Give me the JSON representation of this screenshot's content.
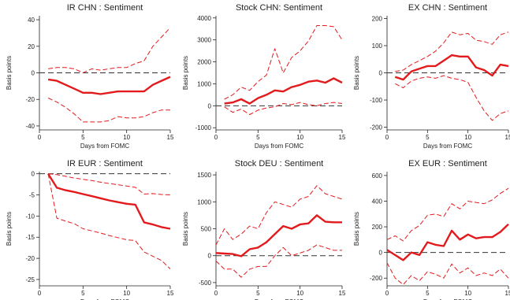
{
  "chart_data": [
    {
      "type": "line",
      "title": "IR CHN : Sentiment",
      "xlabel": "Days from FOMC",
      "ylabel": "Basis points",
      "xlim": [
        0,
        15
      ],
      "ylim": [
        -43,
        43
      ],
      "xticks": [
        0,
        5,
        10,
        15
      ],
      "yticks": [
        -40,
        -20,
        0,
        20,
        40
      ],
      "zero_line": true,
      "grid": false,
      "series": [
        {
          "role": "estimate",
          "color": "#e31a1c",
          "style": "solid",
          "x": [
            1,
            2,
            3,
            4,
            5,
            6,
            7,
            8,
            9,
            10,
            11,
            12,
            13,
            14,
            15
          ],
          "values": [
            -5,
            -6,
            -9,
            -12,
            -15,
            -15,
            -16,
            -15,
            -14,
            -14,
            -14,
            -14,
            -9,
            -6,
            -3
          ]
        },
        {
          "role": "upper",
          "color": "#e31a1c",
          "style": "dashed",
          "x": [
            1,
            2,
            3,
            4,
            5,
            6,
            7,
            8,
            9,
            10,
            11,
            12,
            13,
            14,
            15
          ],
          "values": [
            3,
            4,
            4,
            3,
            0,
            3,
            2,
            3,
            4,
            4,
            7,
            9,
            20,
            27,
            34
          ]
        },
        {
          "role": "lower",
          "color": "#e31a1c",
          "style": "dashed",
          "x": [
            1,
            2,
            3,
            4,
            5,
            6,
            7,
            8,
            9,
            10,
            11,
            12,
            13,
            14,
            15
          ],
          "values": [
            -19,
            -22,
            -26,
            -31,
            -37,
            -37,
            -37,
            -36,
            -33,
            -34,
            -34,
            -33,
            -30,
            -28,
            -28
          ]
        }
      ]
    },
    {
      "type": "line",
      "title": "Stock CHN: Sentiment",
      "xlabel": "Days from FOMC",
      "ylabel": "Basis points",
      "xlim": [
        0,
        15
      ],
      "ylim": [
        -1100,
        4100
      ],
      "xticks": [
        0,
        5,
        10,
        15
      ],
      "yticks": [
        -1000,
        0,
        1000,
        2000,
        3000,
        4000
      ],
      "zero_line": true,
      "grid": false,
      "series": [
        {
          "role": "estimate",
          "color": "#e31a1c",
          "style": "solid",
          "x": [
            1,
            2,
            3,
            4,
            5,
            6,
            7,
            8,
            9,
            10,
            11,
            12,
            13,
            14,
            15
          ],
          "values": [
            100,
            150,
            300,
            100,
            350,
            500,
            700,
            650,
            850,
            950,
            1100,
            1150,
            1050,
            1250,
            1050
          ]
        },
        {
          "role": "upper",
          "color": "#e31a1c",
          "style": "dashed",
          "x": [
            1,
            2,
            3,
            4,
            5,
            6,
            7,
            8,
            9,
            10,
            11,
            12,
            13,
            14,
            15
          ],
          "values": [
            300,
            500,
            850,
            700,
            1100,
            1400,
            2600,
            1500,
            2200,
            2500,
            2950,
            3650,
            3650,
            3600,
            3000
          ]
        },
        {
          "role": "lower",
          "color": "#e31a1c",
          "style": "dashed",
          "x": [
            1,
            2,
            3,
            4,
            5,
            6,
            7,
            8,
            9,
            10,
            11,
            12,
            13,
            14,
            15
          ],
          "values": [
            -50,
            -300,
            -150,
            -400,
            -200,
            -100,
            -50,
            100,
            50,
            150,
            50,
            0,
            100,
            150,
            100
          ]
        }
      ]
    },
    {
      "type": "line",
      "title": "EX CHN : Sentiment",
      "xlabel": "Days from FOMC",
      "ylabel": "Basis points",
      "xlim": [
        0,
        15
      ],
      "ylim": [
        -210,
        210
      ],
      "xticks": [
        0,
        5,
        10,
        15
      ],
      "yticks": [
        -200,
        -100,
        0,
        100,
        200
      ],
      "zero_line": true,
      "grid": false,
      "series": [
        {
          "role": "estimate",
          "color": "#e31a1c",
          "style": "solid",
          "x": [
            1,
            2,
            3,
            4,
            5,
            6,
            7,
            8,
            9,
            10,
            11,
            12,
            13,
            14,
            15
          ],
          "values": [
            -15,
            -25,
            5,
            15,
            25,
            25,
            45,
            65,
            60,
            60,
            20,
            10,
            -10,
            30,
            25
          ]
        },
        {
          "role": "upper",
          "color": "#e31a1c",
          "style": "dashed",
          "x": [
            1,
            2,
            3,
            4,
            5,
            6,
            7,
            8,
            9,
            10,
            11,
            12,
            13,
            14,
            15
          ],
          "values": [
            5,
            10,
            30,
            45,
            60,
            80,
            110,
            150,
            140,
            145,
            120,
            115,
            105,
            140,
            150
          ]
        },
        {
          "role": "lower",
          "color": "#e31a1c",
          "style": "dashed",
          "x": [
            1,
            2,
            3,
            4,
            5,
            6,
            7,
            8,
            9,
            10,
            11,
            12,
            13,
            14,
            15
          ],
          "values": [
            -40,
            -55,
            -30,
            -20,
            -15,
            -20,
            -10,
            -20,
            -25,
            -35,
            -90,
            -140,
            -175,
            -150,
            -140
          ]
        }
      ]
    },
    {
      "type": "line",
      "title": "IR EUR : Sentiment",
      "xlabel": "Days from FOMC",
      "ylabel": "Basis points",
      "xlim": [
        0,
        15
      ],
      "ylim": [
        -26.5,
        0.5
      ],
      "xticks": [
        0,
        5,
        10,
        15
      ],
      "yticks": [
        -25,
        -20,
        -15,
        -10,
        -5,
        0
      ],
      "zero_line": true,
      "grid": false,
      "series": [
        {
          "role": "estimate",
          "color": "#e31a1c",
          "style": "solid",
          "x": [
            1,
            2,
            3,
            4,
            5,
            6,
            7,
            8,
            9,
            10,
            11,
            12,
            13,
            14,
            15
          ],
          "values": [
            0,
            -3.3,
            -3.9,
            -4.3,
            -4.8,
            -5.3,
            -5.8,
            -6.3,
            -6.7,
            -7.1,
            -7.3,
            -11.5,
            -12,
            -12.6,
            -13
          ]
        },
        {
          "role": "upper",
          "color": "#e31a1c",
          "style": "dashed",
          "x": [
            1,
            2,
            3,
            4,
            5,
            6,
            7,
            8,
            9,
            10,
            11,
            12,
            13,
            14,
            15
          ],
          "values": [
            0,
            -0.2,
            -0.6,
            -1,
            -1.3,
            -1.6,
            -2,
            -2.3,
            -2.6,
            -2.9,
            -3.2,
            -4.8,
            -4.7,
            -4.9,
            -5
          ]
        },
        {
          "role": "lower",
          "color": "#e31a1c",
          "style": "dashed",
          "x": [
            1,
            2,
            3,
            4,
            5,
            6,
            7,
            8,
            9,
            10,
            11,
            12,
            13,
            14,
            15
          ],
          "values": [
            0,
            -10.5,
            -11.2,
            -11.8,
            -13,
            -13.5,
            -14,
            -14.6,
            -15.1,
            -15.6,
            -15.8,
            -18.5,
            -19.5,
            -20.5,
            -22.5
          ]
        }
      ]
    },
    {
      "type": "line",
      "title": "Stock DEU : Sentiment",
      "xlabel": "Days from FOMC",
      "ylabel": "Basis points",
      "xlim": [
        0,
        15
      ],
      "ylim": [
        -560,
        1560
      ],
      "xticks": [
        0,
        5,
        10,
        15
      ],
      "yticks": [
        -500,
        0,
        500,
        1000,
        1500
      ],
      "zero_line": true,
      "grid": false,
      "series": [
        {
          "role": "estimate",
          "color": "#e31a1c",
          "style": "solid",
          "x": [
            0,
            1,
            2,
            3,
            4,
            5,
            6,
            7,
            8,
            9,
            10,
            11,
            12,
            13,
            14,
            15
          ],
          "values": [
            50,
            40,
            30,
            -10,
            120,
            150,
            250,
            400,
            550,
            500,
            580,
            600,
            750,
            630,
            620,
            620
          ]
        },
        {
          "role": "upper",
          "color": "#e31a1c",
          "style": "dashed",
          "x": [
            0,
            1,
            2,
            3,
            4,
            5,
            6,
            7,
            8,
            9,
            10,
            11,
            12,
            13,
            14,
            15
          ],
          "values": [
            200,
            500,
            300,
            400,
            550,
            500,
            800,
            1000,
            950,
            900,
            1050,
            1100,
            1300,
            1150,
            1100,
            1050
          ]
        },
        {
          "role": "lower",
          "color": "#e31a1c",
          "style": "dashed",
          "x": [
            0,
            1,
            2,
            3,
            4,
            5,
            6,
            7,
            8,
            9,
            10,
            11,
            12,
            13,
            14,
            15
          ],
          "values": [
            -100,
            -250,
            -250,
            -400,
            -250,
            -200,
            -200,
            0,
            150,
            0,
            50,
            100,
            200,
            150,
            100,
            100
          ]
        }
      ]
    },
    {
      "type": "line",
      "title": "EX EUR : Sentiment",
      "xlabel": "Days from FOMC",
      "ylabel": "Basis points",
      "xlim": [
        0,
        15
      ],
      "ylim": [
        -260,
        630
      ],
      "xticks": [
        0,
        5,
        10,
        15
      ],
      "yticks": [
        -200,
        0,
        200,
        400,
        600
      ],
      "zero_line": true,
      "grid": false,
      "series": [
        {
          "role": "estimate",
          "color": "#e31a1c",
          "style": "solid",
          "x": [
            0,
            1,
            2,
            3,
            4,
            5,
            6,
            7,
            8,
            9,
            10,
            11,
            12,
            13,
            14,
            15
          ],
          "values": [
            20,
            -20,
            -60,
            0,
            -20,
            80,
            60,
            50,
            170,
            100,
            140,
            110,
            120,
            120,
            160,
            220
          ]
        },
        {
          "role": "upper",
          "color": "#e31a1c",
          "style": "dashed",
          "x": [
            0,
            1,
            2,
            3,
            4,
            5,
            6,
            7,
            8,
            9,
            10,
            11,
            12,
            13,
            14,
            15
          ],
          "values": [
            100,
            130,
            90,
            170,
            210,
            290,
            300,
            280,
            380,
            340,
            400,
            390,
            380,
            410,
            460,
            500
          ]
        },
        {
          "role": "lower",
          "color": "#e31a1c",
          "style": "dashed",
          "x": [
            0,
            1,
            2,
            3,
            4,
            5,
            6,
            7,
            8,
            9,
            10,
            11,
            12,
            13,
            14,
            15
          ],
          "values": [
            -80,
            -200,
            -250,
            -180,
            -220,
            -150,
            -170,
            -200,
            -90,
            -160,
            -120,
            -180,
            -160,
            -180,
            -130,
            -200
          ]
        }
      ]
    }
  ]
}
